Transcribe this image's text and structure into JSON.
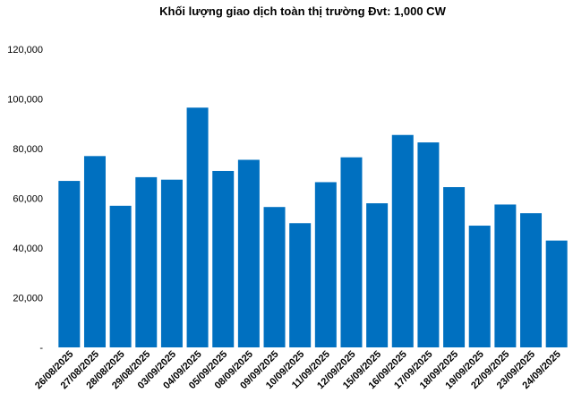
{
  "chart_data": {
    "type": "bar",
    "title": "Khối lượng giao dịch toàn thị trường Đvt: 1,000 CW",
    "categories": [
      "26/08/2025",
      "27/08/2025",
      "28/08/2025",
      "29/08/2025",
      "03/09/2025",
      "04/09/2025",
      "05/09/2025",
      "08/09/2025",
      "09/09/2025",
      "10/09/2025",
      "11/09/2025",
      "12/09/2025",
      "15/09/2025",
      "16/09/2025",
      "17/09/2025",
      "18/09/2025",
      "19/09/2025",
      "22/09/2025",
      "23/09/2025",
      "24/09/2025"
    ],
    "values": [
      67000,
      77000,
      57000,
      68500,
      67500,
      96500,
      71000,
      75500,
      56500,
      50000,
      66500,
      76500,
      58000,
      85500,
      82500,
      64500,
      49000,
      57500,
      54000,
      43000
    ],
    "y_tick_labels": [
      "-",
      "20,000",
      "40,000",
      "60,000",
      "80,000",
      "100,000",
      "120,000"
    ],
    "y_tick_values": [
      0,
      20000,
      40000,
      60000,
      80000,
      100000,
      120000
    ],
    "ylim": [
      0,
      120000
    ],
    "xlabel": "",
    "ylabel": "",
    "grid": false,
    "legend": "none",
    "bar_color": "#0070C0"
  }
}
